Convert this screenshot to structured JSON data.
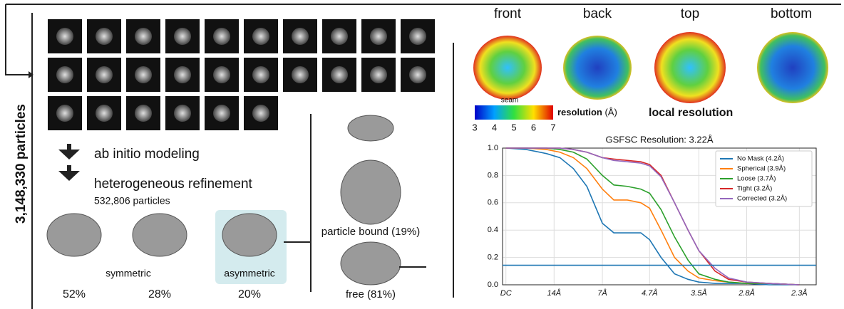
{
  "left_label": "3,148,330 particles",
  "steps": [
    "ab initio modeling",
    "heterogeneous refinement"
  ],
  "particle_count": "532,806 particles",
  "classes": {
    "symmetric": "symmetric",
    "asymmetric": "asymmetric",
    "percents": [
      "52%",
      "28%",
      "20%"
    ]
  },
  "subclasses": [
    "particle bound (19%)",
    "free (81%)"
  ],
  "views": [
    "front",
    "back",
    "top",
    "bottom"
  ],
  "seam": "seam",
  "colorbar": {
    "label": "resolution",
    "unit": "(Å)",
    "ticks": [
      3,
      4,
      5,
      6,
      7
    ]
  },
  "local_resolution": "local resolution",
  "chart_data": {
    "type": "line",
    "title": "GSFSC Resolution: 3.22Å",
    "x": [
      0,
      0.03,
      0.06,
      0.08,
      0.1,
      0.12,
      0.143,
      0.16,
      0.18,
      0.2,
      0.213,
      0.23,
      0.25,
      0.27,
      0.286,
      0.31,
      0.33,
      0.357,
      0.39,
      0.435
    ],
    "series": [
      {
        "name": "No Mask (4.2Å)",
        "color": "#1f77b4",
        "values": [
          1,
          0.99,
          0.96,
          0.93,
          0.85,
          0.72,
          0.45,
          0.38,
          0.38,
          0.38,
          0.33,
          0.2,
          0.08,
          0.04,
          0.02,
          0.01,
          0.01,
          0.01,
          0,
          0
        ]
      },
      {
        "name": "Spherical (3.9Å)",
        "color": "#ff7f0e",
        "values": [
          1,
          1,
          0.99,
          0.97,
          0.93,
          0.85,
          0.7,
          0.62,
          0.62,
          0.6,
          0.56,
          0.4,
          0.2,
          0.1,
          0.05,
          0.03,
          0.02,
          0.01,
          0.01,
          0
        ]
      },
      {
        "name": "Loose (3.7Å)",
        "color": "#2ca02c",
        "values": [
          1,
          1,
          1,
          0.99,
          0.97,
          0.92,
          0.8,
          0.73,
          0.72,
          0.7,
          0.67,
          0.55,
          0.35,
          0.18,
          0.08,
          0.04,
          0.02,
          0.01,
          0.01,
          0
        ]
      },
      {
        "name": "Tight (3.2Å)",
        "color": "#d62728",
        "values": [
          1,
          1,
          1,
          1,
          0.99,
          0.97,
          0.93,
          0.92,
          0.91,
          0.9,
          0.88,
          0.8,
          0.6,
          0.4,
          0.25,
          0.1,
          0.04,
          0.02,
          0.01,
          0
        ]
      },
      {
        "name": "Corrected (3.2Å)",
        "color": "#9467bd",
        "values": [
          1,
          1,
          1,
          1,
          0.99,
          0.97,
          0.93,
          0.91,
          0.9,
          0.89,
          0.87,
          0.79,
          0.6,
          0.4,
          0.25,
          0.12,
          0.05,
          0.02,
          0.01,
          0
        ]
      }
    ],
    "threshold": 0.143,
    "threshold_color": "#1f77b4",
    "xlim": [
      -0.005,
      0.46
    ],
    "ylim": [
      0,
      1
    ],
    "xticks": [
      {
        "value": 0,
        "label": "DC"
      },
      {
        "value": 0.0714,
        "label": "14Å"
      },
      {
        "value": 0.143,
        "label": "7Å"
      },
      {
        "value": 0.213,
        "label": "4.7Å"
      },
      {
        "value": 0.286,
        "label": "3.5Å"
      },
      {
        "value": 0.357,
        "label": "2.8Å"
      },
      {
        "value": 0.435,
        "label": "2.3Å"
      }
    ],
    "yticks": [
      {
        "value": 0,
        "label": "0.0"
      },
      {
        "value": 0.2,
        "label": "0.2"
      },
      {
        "value": 0.4,
        "label": "0.4"
      },
      {
        "value": 0.6,
        "label": "0.6"
      },
      {
        "value": 0.8,
        "label": "0.8"
      },
      {
        "value": 1,
        "label": "1.0"
      }
    ],
    "grid": true,
    "legend": "upper right"
  }
}
